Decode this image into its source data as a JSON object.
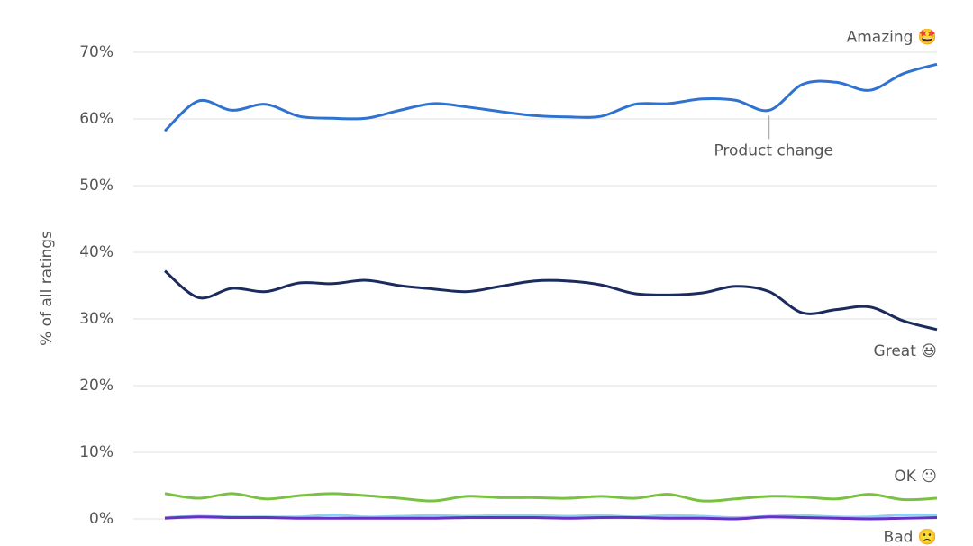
{
  "chart_data": {
    "type": "line",
    "y_label": "% of all ratings",
    "categories": [
      null,
      null,
      null,
      null,
      null,
      null,
      null,
      null,
      null,
      null,
      null,
      null,
      null,
      null,
      null,
      null,
      null,
      null,
      null,
      null,
      null,
      null,
      null,
      null
    ],
    "series": [
      {
        "name": "Amazing 🤩",
        "color": "#2f72d0",
        "values": [
          58.2,
          62.7,
          61.3,
          62.2,
          60.4,
          60.1,
          60.1,
          61.3,
          62.3,
          61.8,
          61.1,
          60.5,
          60.3,
          60.4,
          62.2,
          62.3,
          63.0,
          62.8,
          61.3,
          65.2,
          65.5,
          64.3,
          66.8,
          68.2
        ]
      },
      {
        "name": "Great 😃",
        "color": "#1b2b5e",
        "values": [
          37.2,
          33.2,
          34.6,
          34.1,
          35.4,
          35.3,
          35.8,
          35.0,
          34.5,
          34.1,
          34.9,
          35.7,
          35.7,
          35.1,
          33.8,
          33.6,
          33.9,
          34.9,
          34.1,
          30.9,
          31.4,
          31.8,
          29.7,
          28.4
        ]
      },
      {
        "name": "OK 😐",
        "color": "#7ac143",
        "values": [
          3.8,
          3.1,
          3.8,
          3.0,
          3.5,
          3.8,
          3.5,
          3.1,
          2.7,
          3.4,
          3.2,
          3.2,
          3.1,
          3.4,
          3.1,
          3.7,
          2.7,
          3.0,
          3.4,
          3.3,
          3.0,
          3.7,
          2.9,
          3.1
        ]
      },
      {
        "color": "#8fd0f0",
        "values": [
          0.2,
          0.4,
          0.3,
          0.3,
          0.3,
          0.6,
          0.3,
          0.4,
          0.5,
          0.4,
          0.5,
          0.5,
          0.4,
          0.5,
          0.3,
          0.5,
          0.4,
          0.2,
          0.4,
          0.5,
          0.3,
          0.3,
          0.6,
          0.6
        ]
      },
      {
        "name": "Bad 🙁",
        "color": "#6a30c4",
        "values": [
          0.1,
          0.3,
          0.2,
          0.2,
          0.1,
          0.1,
          0.1,
          0.1,
          0.1,
          0.2,
          0.2,
          0.2,
          0.1,
          0.2,
          0.2,
          0.1,
          0.1,
          0.0,
          0.3,
          0.2,
          0.1,
          0.0,
          0.1,
          0.2
        ]
      }
    ],
    "annotation": {
      "text": "Product change",
      "series": 0,
      "index": 18
    },
    "ylim": [
      0,
      70
    ],
    "yticks": [
      {
        "value": 0,
        "label": "0%"
      },
      {
        "value": 10,
        "label": "10%"
      },
      {
        "value": 20,
        "label": "20%"
      },
      {
        "value": 30,
        "label": "30%"
      },
      {
        "value": 40,
        "label": "40%"
      },
      {
        "value": 50,
        "label": "50%"
      },
      {
        "value": 60,
        "label": "60%"
      },
      {
        "value": 70,
        "label": "70%"
      }
    ],
    "grid": true
  }
}
